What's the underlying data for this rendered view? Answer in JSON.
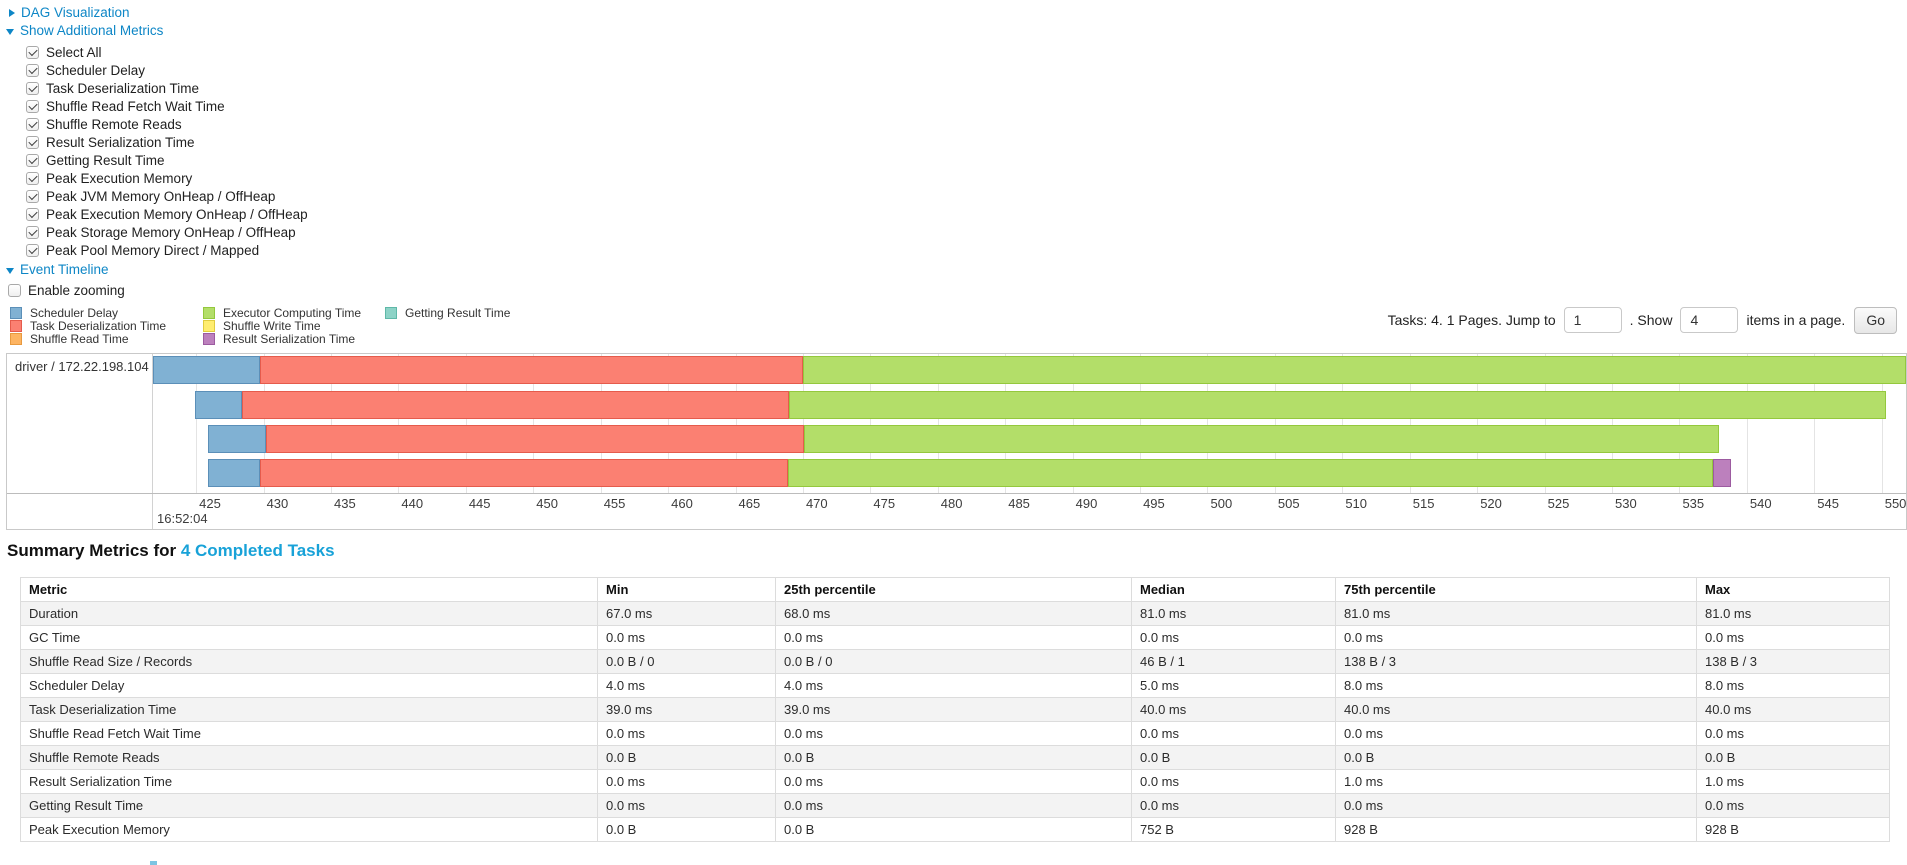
{
  "controls": {
    "dag_label": "DAG Visualization",
    "metrics_label": "Show Additional Metrics",
    "checkboxes": [
      {
        "label": "Select All",
        "checked": true
      },
      {
        "label": "Scheduler Delay",
        "checked": true
      },
      {
        "label": "Task Deserialization Time",
        "checked": true
      },
      {
        "label": "Shuffle Read Fetch Wait Time",
        "checked": true
      },
      {
        "label": "Shuffle Remote Reads",
        "checked": true
      },
      {
        "label": "Result Serialization Time",
        "checked": true
      },
      {
        "label": "Getting Result Time",
        "checked": true
      },
      {
        "label": "Peak Execution Memory",
        "checked": true
      },
      {
        "label": "Peak JVM Memory OnHeap / OffHeap",
        "checked": true
      },
      {
        "label": "Peak Execution Memory OnHeap / OffHeap",
        "checked": true
      },
      {
        "label": "Peak Storage Memory OnHeap / OffHeap",
        "checked": true
      },
      {
        "label": "Peak Pool Memory Direct / Mapped",
        "checked": true
      }
    ],
    "event_timeline_label": "Event Timeline",
    "enable_zooming_label": "Enable zooming",
    "enable_zooming_checked": false
  },
  "legend": {
    "columns": [
      [
        {
          "label": "Scheduler Delay",
          "metric": "scheduler_delay"
        },
        {
          "label": "Task Deserialization Time",
          "metric": "task_deserialization_time"
        },
        {
          "label": "Shuffle Read Time",
          "metric": "shuffle_read_time"
        }
      ],
      [
        {
          "label": "Executor Computing Time",
          "metric": "executor_computing_time"
        },
        {
          "label": "Shuffle Write Time",
          "metric": "shuffle_write_time"
        },
        {
          "label": "Result Serialization Time",
          "metric": "result_serialization_time"
        }
      ],
      [
        {
          "label": "Getting Result Time",
          "metric": "getting_result_time"
        }
      ]
    ]
  },
  "pager": {
    "prefix_text": "Tasks: 4. 1 Pages. Jump to",
    "jump_value": "1",
    "mid_text": ". Show",
    "show_value": "4",
    "suffix_text": "items in a page.",
    "go_label": "Go"
  },
  "chart_data": {
    "type": "timeline",
    "title": "Event Timeline",
    "group_label": "driver / 172.22.198.104",
    "x_axis": {
      "min": 421.8,
      "max": 551.8,
      "ticks_from": 425,
      "ticks_to": 550,
      "tick_step": 5,
      "major_tick_label": "16:52:04"
    },
    "palette": {
      "scheduler_delay": {
        "fill": "#80B1D3",
        "border": "#5B8FB8"
      },
      "task_deserialization_time": {
        "fill": "#FB8072",
        "border": "#E55B4C"
      },
      "shuffle_read_time": {
        "fill": "#FDB462",
        "border": "#E89A3F"
      },
      "executor_computing_time": {
        "fill": "#B3DE69",
        "border": "#94C83D"
      },
      "shuffle_write_time": {
        "fill": "#FFED6F",
        "border": "#E0CC3F"
      },
      "result_serialization_time": {
        "fill": "#BC80BD",
        "border": "#9C5BA0"
      },
      "getting_result_time": {
        "fill": "#8DD3C7",
        "border": "#5FB8A8"
      }
    },
    "rows": [
      {
        "task": 1,
        "segments": [
          {
            "metric": "scheduler_delay",
            "start": 421.8,
            "end": 429.7
          },
          {
            "metric": "task_deserialization_time",
            "start": 429.7,
            "end": 470.0
          },
          {
            "metric": "executor_computing_time",
            "start": 470.0,
            "end": 551.8
          }
        ]
      },
      {
        "task": 2,
        "segments": [
          {
            "metric": "scheduler_delay",
            "start": 424.9,
            "end": 428.4
          },
          {
            "metric": "task_deserialization_time",
            "start": 428.4,
            "end": 469.0
          },
          {
            "metric": "executor_computing_time",
            "start": 469.0,
            "end": 550.3
          }
        ]
      },
      {
        "task": 3,
        "segments": [
          {
            "metric": "scheduler_delay",
            "start": 425.9,
            "end": 430.2
          },
          {
            "metric": "task_deserialization_time",
            "start": 430.2,
            "end": 470.1
          },
          {
            "metric": "executor_computing_time",
            "start": 470.1,
            "end": 537.9
          }
        ]
      },
      {
        "task": 4,
        "segments": [
          {
            "metric": "scheduler_delay",
            "start": 425.9,
            "end": 429.7
          },
          {
            "metric": "task_deserialization_time",
            "start": 429.7,
            "end": 468.9
          },
          {
            "metric": "executor_computing_time",
            "start": 468.9,
            "end": 537.5
          },
          {
            "metric": "result_serialization_time",
            "start": 537.5,
            "end": 538.8
          }
        ]
      }
    ]
  },
  "summary": {
    "title_prefix": "Summary Metrics for ",
    "title_link": "4 Completed Tasks",
    "table": {
      "headers": [
        "Metric",
        "Min",
        "25th percentile",
        "Median",
        "75th percentile",
        "Max"
      ],
      "rows": [
        [
          "Duration",
          "67.0 ms",
          "68.0 ms",
          "81.0 ms",
          "81.0 ms",
          "81.0 ms"
        ],
        [
          "GC Time",
          "0.0 ms",
          "0.0 ms",
          "0.0 ms",
          "0.0 ms",
          "0.0 ms"
        ],
        [
          "Shuffle Read Size / Records",
          "0.0 B / 0",
          "0.0 B / 0",
          "46 B / 1",
          "138 B / 3",
          "138 B / 3"
        ],
        [
          "Scheduler Delay",
          "4.0 ms",
          "4.0 ms",
          "5.0 ms",
          "8.0 ms",
          "8.0 ms"
        ],
        [
          "Task Deserialization Time",
          "39.0 ms",
          "39.0 ms",
          "40.0 ms",
          "40.0 ms",
          "40.0 ms"
        ],
        [
          "Shuffle Read Fetch Wait Time",
          "0.0 ms",
          "0.0 ms",
          "0.0 ms",
          "0.0 ms",
          "0.0 ms"
        ],
        [
          "Shuffle Remote Reads",
          "0.0 B",
          "0.0 B",
          "0.0 B",
          "0.0 B",
          "0.0 B"
        ],
        [
          "Result Serialization Time",
          "0.0 ms",
          "0.0 ms",
          "0.0 ms",
          "1.0 ms",
          "1.0 ms"
        ],
        [
          "Getting Result Time",
          "0.0 ms",
          "0.0 ms",
          "0.0 ms",
          "0.0 ms",
          "0.0 ms"
        ],
        [
          "Peak Execution Memory",
          "0.0 B",
          "0.0 B",
          "752 B",
          "928 B",
          "928 B"
        ]
      ]
    }
  },
  "page": {
    "background": "#ffffff",
    "link_color": "#0d86c6",
    "title_link_color": "#18a2d8"
  }
}
